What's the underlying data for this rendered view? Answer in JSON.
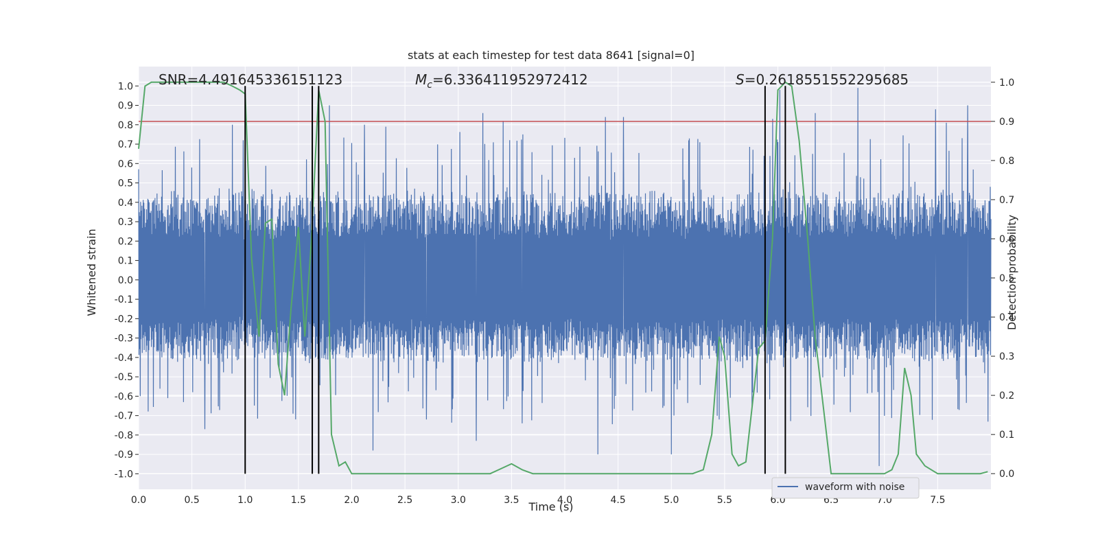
{
  "colors": {
    "background": "#eaeaf2",
    "grid": "#ffffff",
    "strain": "#4c72b0",
    "probability": "#55a868",
    "threshold": "#c44e52",
    "marker": "#000000"
  },
  "chart_data": {
    "type": "line",
    "title": "stats at each timestep for test data 8641 [signal=0]",
    "xlabel": "Time (s)",
    "ylabel_left": "Whitened strain",
    "ylabel_right": "Detection probability",
    "xlim": [
      0.0,
      8.0
    ],
    "ylim_left": [
      -1.08,
      1.1
    ],
    "ylim_right": [
      -0.04,
      1.04
    ],
    "grid": true,
    "legend_position": "bottom-right",
    "xticks": [
      "0.0",
      "0.5",
      "1.0",
      "1.5",
      "2.0",
      "2.5",
      "3.0",
      "3.5",
      "4.0",
      "4.5",
      "5.0",
      "5.5",
      "6.0",
      "6.5",
      "7.0",
      "7.5"
    ],
    "yticks_left": [
      "1.0",
      "0.9",
      "0.8",
      "0.7",
      "0.6",
      "0.5",
      "0.4",
      "0.3",
      "0.2",
      "0.1",
      "0.0",
      "-0.1",
      "-0.2",
      "-0.3",
      "-0.4",
      "-0.5",
      "-0.6",
      "-0.7",
      "-0.8",
      "-0.9",
      "-1.0"
    ],
    "yticks_right": [
      "1.0",
      "0.9",
      "0.8",
      "0.7",
      "0.6",
      "0.5",
      "0.4",
      "0.3",
      "0.2",
      "0.1",
      "0.0"
    ],
    "annotations": {
      "snr": "SNR=4.491645336151123",
      "mc_symbol": "M",
      "mc_subscript": "c",
      "mc_value": "=6.336411952972412",
      "s_symbol": "S",
      "s_value": "=0.2618551552295685"
    },
    "threshold": {
      "axis": "right",
      "value": 0.9
    },
    "vertical_markers": [
      1.0,
      1.63,
      1.69,
      5.88,
      6.07
    ],
    "series": [
      {
        "name": "waveform with noise",
        "axis": "left",
        "style": "noise",
        "typical_range": [
          -0.38,
          0.41
        ],
        "peaks_up": [
          [
            0.88,
            0.8
          ],
          [
            0.98,
            0.72
          ],
          [
            1.79,
            0.9
          ],
          [
            2.12,
            0.8
          ],
          [
            2.32,
            0.79
          ],
          [
            3.23,
            0.86
          ],
          [
            3.42,
            0.82
          ],
          [
            4.38,
            0.84
          ],
          [
            4.55,
            0.84
          ],
          [
            6.02,
            0.98
          ],
          [
            6.75,
            0.99
          ],
          [
            7.48,
            0.88
          ],
          [
            7.58,
            0.81
          ],
          [
            7.78,
            0.9
          ],
          [
            5.95,
            0.83
          ],
          [
            6.35,
            0.86
          ]
        ],
        "peaks_down": [
          [
            0.88,
            -0.88
          ],
          [
            0.62,
            -0.77
          ],
          [
            2.2,
            -0.88
          ],
          [
            3.17,
            -0.83
          ],
          [
            4.31,
            -0.9
          ],
          [
            5.0,
            -0.9
          ],
          [
            6.95,
            -0.96
          ],
          [
            5.45,
            -0.72
          ],
          [
            1.45,
            -0.69
          ],
          [
            2.7,
            -0.72
          ],
          [
            3.6,
            -0.74
          ]
        ]
      },
      {
        "name": "",
        "axis": "right",
        "x": [
          0.0,
          0.06,
          0.12,
          0.2,
          0.3,
          0.4,
          0.5,
          0.6,
          0.7,
          0.8,
          0.88,
          0.95,
          1.0,
          1.06,
          1.13,
          1.19,
          1.25,
          1.31,
          1.37,
          1.43,
          1.5,
          1.56,
          1.62,
          1.69,
          1.75,
          1.81,
          1.88,
          1.94,
          2.0,
          2.08,
          2.2,
          2.4,
          2.55,
          2.7,
          2.9,
          3.1,
          3.3,
          3.38,
          3.5,
          3.6,
          3.7,
          3.9,
          4.1,
          4.3,
          4.5,
          4.7,
          4.8,
          4.9,
          5.0,
          5.1,
          5.2,
          5.3,
          5.38,
          5.45,
          5.5,
          5.57,
          5.63,
          5.7,
          5.82,
          5.88,
          5.95,
          6.0,
          6.07,
          6.13,
          6.2,
          6.28,
          6.35,
          6.5,
          6.7,
          6.9,
          7.0,
          7.07,
          7.13,
          7.19,
          7.25,
          7.3,
          7.38,
          7.5,
          7.7,
          7.9,
          7.97
        ],
        "values": [
          0.83,
          0.99,
          1.0,
          1.0,
          1.0,
          1.0,
          1.0,
          1.0,
          1.0,
          1.0,
          0.99,
          0.98,
          0.97,
          0.55,
          0.35,
          0.64,
          0.65,
          0.28,
          0.2,
          0.42,
          0.63,
          0.35,
          0.59,
          0.98,
          0.9,
          0.1,
          0.02,
          0.03,
          0.0,
          0.0,
          0.0,
          0.0,
          0.0,
          0.0,
          0.0,
          0.0,
          0.0,
          0.01,
          0.025,
          0.01,
          0.0,
          0.0,
          0.0,
          0.0,
          0.0,
          0.0,
          0.0,
          0.0,
          0.0,
          0.0,
          0.0,
          0.01,
          0.1,
          0.35,
          0.3,
          0.05,
          0.02,
          0.03,
          0.32,
          0.34,
          0.6,
          0.98,
          1.0,
          0.99,
          0.85,
          0.6,
          0.35,
          0.0,
          0.0,
          0.0,
          0.0,
          0.01,
          0.05,
          0.27,
          0.2,
          0.05,
          0.02,
          0.0,
          0.0,
          0.0,
          0.005
        ]
      }
    ]
  }
}
